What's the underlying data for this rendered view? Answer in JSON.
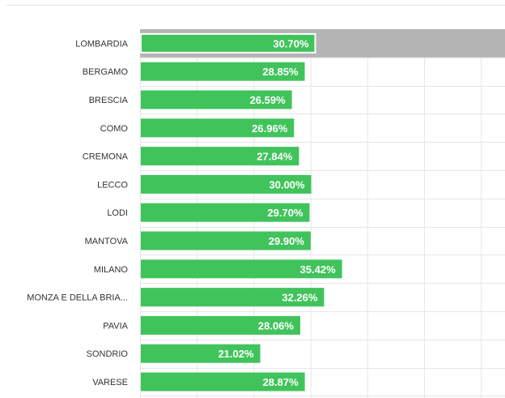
{
  "chart_data": {
    "type": "bar",
    "orientation": "horizontal",
    "title": "",
    "xlabel": "",
    "ylabel": "",
    "xlim": [
      0,
      100
    ],
    "categories": [
      "LOMBARDIA",
      "BERGAMO",
      "BRESCIA",
      "COMO",
      "CREMONA",
      "LECCO",
      "LODI",
      "MANTOVA",
      "MILANO",
      "MONZA E DELLA BRIA...",
      "PAVIA",
      "SONDRIO",
      "VARESE"
    ],
    "values": [
      30.7,
      28.85,
      26.59,
      26.96,
      27.84,
      30.0,
      29.7,
      29.9,
      35.42,
      32.26,
      28.06,
      21.02,
      28.87
    ],
    "value_labels": [
      "30.70%",
      "28.85%",
      "26.59%",
      "26.96%",
      "27.84%",
      "30.00%",
      "29.70%",
      "29.90%",
      "35.42%",
      "32.26%",
      "28.06%",
      "21.02%",
      "28.87%"
    ],
    "highlighted_index": 0,
    "grid": true,
    "colors": {
      "bar": "#41c35c",
      "highlight_row": "#b4b4b4",
      "grid": "#e6e6e6",
      "label_text": "#333333",
      "value_text": "#ffffff"
    }
  }
}
